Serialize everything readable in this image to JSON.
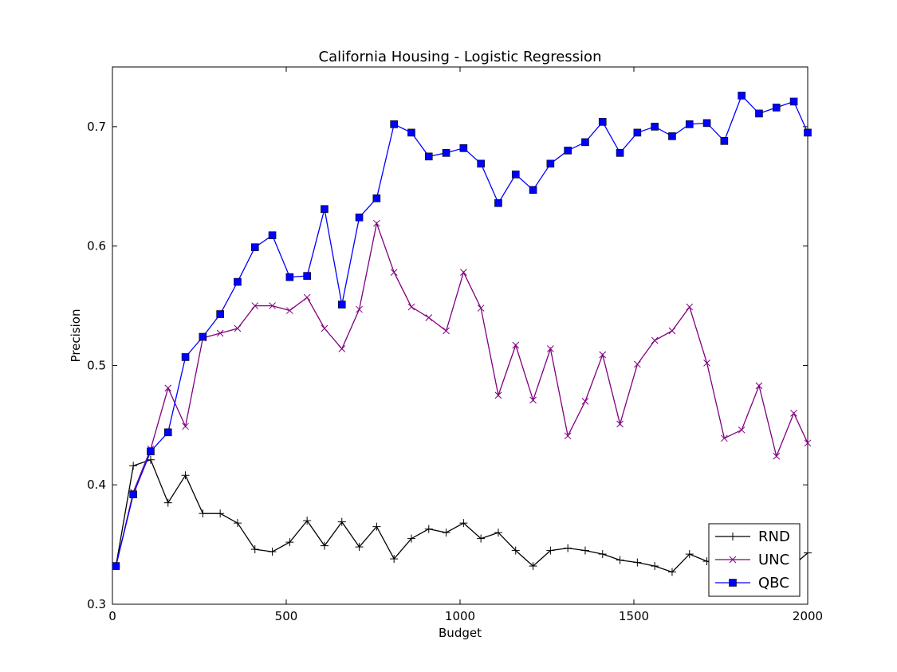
{
  "chart_data": {
    "type": "line",
    "title": "California Housing - Logistic Regression",
    "xlabel": "Budget",
    "ylabel": "Precision",
    "xlim": [
      0,
      2000
    ],
    "ylim": [
      0.3,
      0.75
    ],
    "xticks": [
      0,
      500,
      1000,
      1500,
      2000
    ],
    "yticks": [
      0.3,
      0.4,
      0.5,
      0.6,
      0.7
    ],
    "xtick_labels": [
      "0",
      "500",
      "1000",
      "1500",
      "2000"
    ],
    "ytick_labels": [
      "0.3",
      "0.4",
      "0.5",
      "0.6",
      "0.7"
    ],
    "legend_position": "lower-right",
    "grid": false,
    "series": [
      {
        "name": "RND",
        "color": "#000000",
        "marker": "plus",
        "x": [
          10,
          60,
          110,
          160,
          210,
          260,
          310,
          360,
          410,
          460,
          510,
          560,
          610,
          660,
          710,
          760,
          810,
          860,
          910,
          960,
          1010,
          1060,
          1110,
          1160,
          1210,
          1260,
          1310,
          1360,
          1410,
          1460,
          1510,
          1560,
          1610,
          1660,
          1710,
          1760,
          1810,
          1860,
          1910,
          1960,
          2000
        ],
        "y": [
          0.332,
          0.416,
          0.421,
          0.385,
          0.408,
          0.376,
          0.376,
          0.368,
          0.346,
          0.344,
          0.352,
          0.37,
          0.349,
          0.369,
          0.348,
          0.365,
          0.338,
          0.355,
          0.363,
          0.36,
          0.368,
          0.355,
          0.36,
          0.345,
          0.332,
          0.345,
          0.347,
          0.345,
          0.342,
          0.337,
          0.335,
          0.332,
          0.327,
          0.342,
          0.336,
          0.332,
          0.338,
          0.335,
          0.33,
          0.333,
          0.343
        ]
      },
      {
        "name": "UNC",
        "color": "#800080",
        "marker": "x",
        "x": [
          10,
          60,
          110,
          160,
          210,
          260,
          310,
          360,
          410,
          460,
          510,
          560,
          610,
          660,
          710,
          760,
          810,
          860,
          910,
          960,
          1010,
          1060,
          1110,
          1160,
          1210,
          1260,
          1310,
          1360,
          1410,
          1460,
          1510,
          1560,
          1610,
          1660,
          1710,
          1760,
          1810,
          1860,
          1910,
          1960,
          2000
        ],
        "y": [
          0.332,
          0.394,
          0.43,
          0.481,
          0.449,
          0.523,
          0.527,
          0.531,
          0.55,
          0.55,
          0.546,
          0.557,
          0.531,
          0.514,
          0.547,
          0.619,
          0.578,
          0.549,
          0.54,
          0.529,
          0.578,
          0.548,
          0.475,
          0.517,
          0.471,
          0.514,
          0.441,
          0.47,
          0.509,
          0.451,
          0.501,
          0.521,
          0.529,
          0.549,
          0.502,
          0.439,
          0.446,
          0.483,
          0.424,
          0.46,
          0.435
        ]
      },
      {
        "name": "QBC",
        "color": "#0000ff",
        "marker": "square",
        "x": [
          10,
          60,
          110,
          160,
          210,
          260,
          310,
          360,
          410,
          460,
          510,
          560,
          610,
          660,
          710,
          760,
          810,
          860,
          910,
          960,
          1010,
          1060,
          1110,
          1160,
          1210,
          1260,
          1310,
          1360,
          1410,
          1460,
          1510,
          1560,
          1610,
          1660,
          1710,
          1760,
          1810,
          1860,
          1910,
          1960,
          2000
        ],
        "y": [
          0.332,
          0.392,
          0.428,
          0.444,
          0.507,
          0.524,
          0.543,
          0.57,
          0.599,
          0.609,
          0.574,
          0.575,
          0.631,
          0.551,
          0.624,
          0.64,
          0.702,
          0.695,
          0.675,
          0.678,
          0.682,
          0.669,
          0.636,
          0.66,
          0.647,
          0.669,
          0.68,
          0.687,
          0.704,
          0.678,
          0.695,
          0.7,
          0.692,
          0.702,
          0.703,
          0.688,
          0.726,
          0.711,
          0.716,
          0.721,
          0.695
        ]
      }
    ]
  }
}
